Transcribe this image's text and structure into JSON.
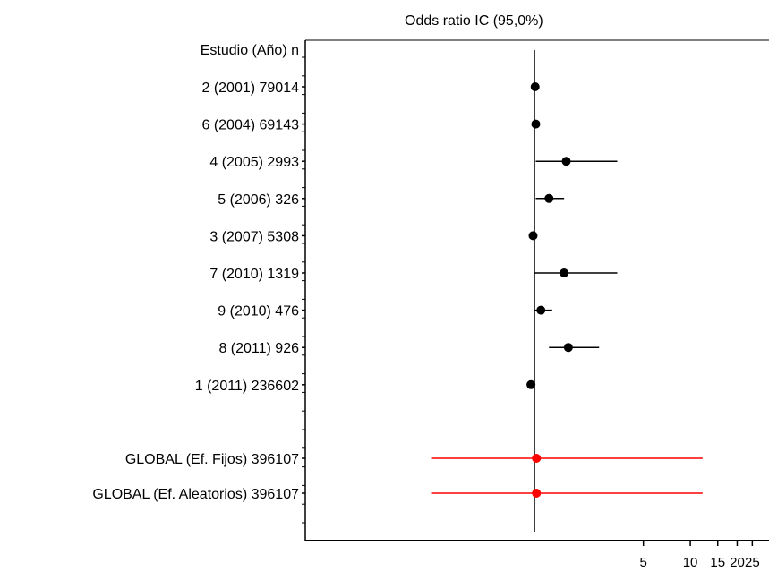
{
  "chart_data": {
    "type": "forest",
    "title": "Odds ratio IC  (95,0%)",
    "header_label": "Estudio  (Año)   n",
    "x_scale": "log",
    "xticks": [
      "5",
      "10",
      "15",
      "20",
      "25"
    ],
    "studies": [
      {
        "label": "2 (2001)  79014",
        "or": 1.01,
        "lo": 1.01,
        "hi": 1.01,
        "color": "#000000"
      },
      {
        "label": "6 (2004)  69143",
        "or": 1.02,
        "lo": 1.02,
        "hi": 1.02,
        "color": "#000000"
      },
      {
        "label": "4 (2005)    2993",
        "or": 1.6,
        "lo": 1.02,
        "hi": 3.4,
        "color": "#000000"
      },
      {
        "label": "5 (2006)     326",
        "or": 1.24,
        "lo": 1.02,
        "hi": 1.55,
        "color": "#000000"
      },
      {
        "label": "3 (2007)   5308",
        "or": 0.98,
        "lo": 0.98,
        "hi": 0.98,
        "color": "#000000"
      },
      {
        "label": "7 (2010)   1319",
        "or": 1.55,
        "lo": 0.99,
        "hi": 3.4,
        "color": "#000000"
      },
      {
        "label": "9 (2010)     476",
        "or": 1.1,
        "lo": 0.99,
        "hi": 1.3,
        "color": "#000000"
      },
      {
        "label": "8 (2011)     926",
        "or": 1.65,
        "lo": 1.24,
        "hi": 2.6,
        "color": "#000000"
      },
      {
        "label": "1 (2011) 236602",
        "or": 0.95,
        "lo": 0.95,
        "hi": 0.95,
        "color": "#000000"
      }
    ],
    "pooled": [
      {
        "label": "GLOBAL (Ef. Fijos) 396107",
        "or": 1.03,
        "lo": 0.22,
        "hi": 12.0,
        "color": "#ff0000"
      },
      {
        "label": "GLOBAL (Ef. Aleatorios) 396107",
        "or": 1.03,
        "lo": 0.22,
        "hi": 12.0,
        "color": "#ff0000"
      }
    ],
    "reference_line": 1
  }
}
